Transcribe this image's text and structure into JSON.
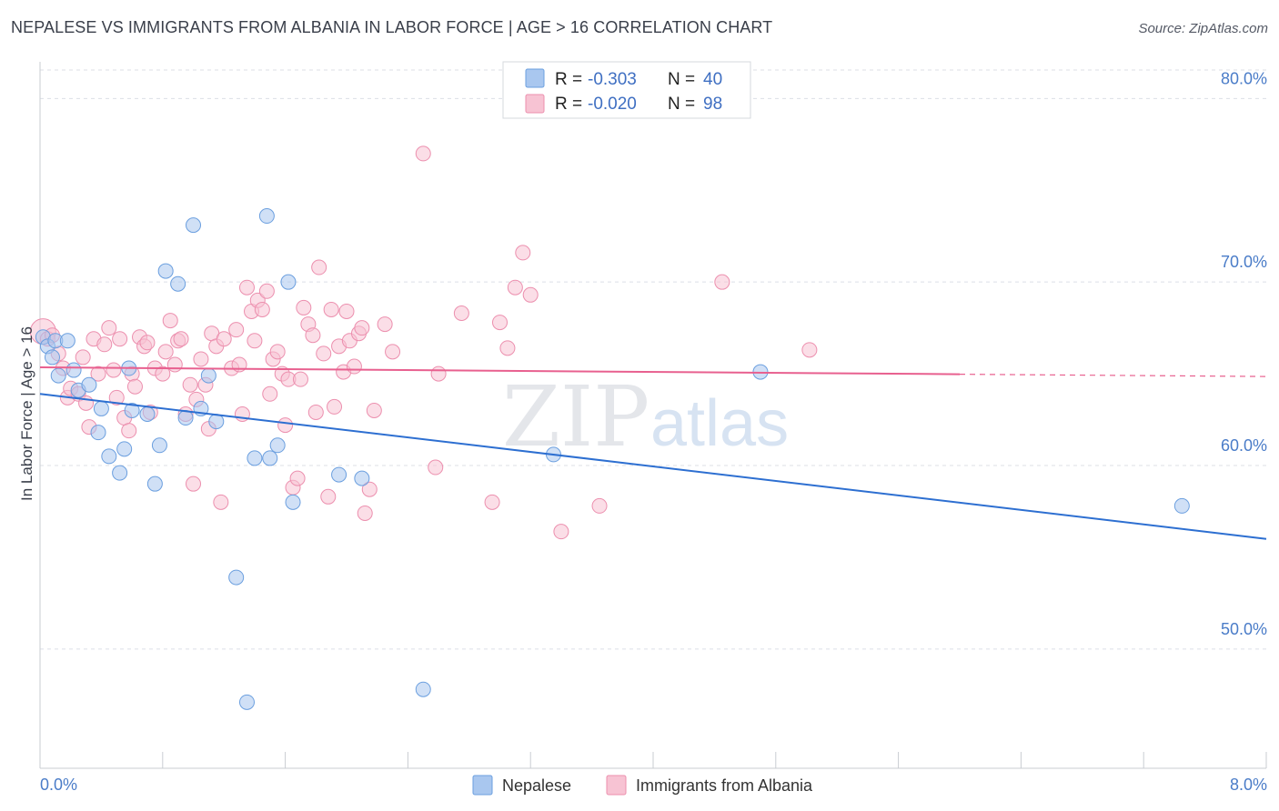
{
  "title": "NEPALESE VS IMMIGRANTS FROM ALBANIA IN LABOR FORCE | AGE > 16 CORRELATION CHART",
  "source": "Source: ZipAtlas.com",
  "watermark": {
    "zip": "ZIP",
    "atlas": "atlas"
  },
  "colors": {
    "nepalese_fill": "#a9c7ef",
    "nepalese_stroke": "#6b9fdf",
    "nepalese_line": "#2d6fd1",
    "albania_fill": "#f7c3d3",
    "albania_stroke": "#ec8fae",
    "albania_line": "#e8608f",
    "tick_text": "#4a7cc8",
    "grid": "#dcdfe6"
  },
  "legend_top": {
    "rows": [
      {
        "r_label": "R = ",
        "r_value": "-0.303",
        "n_label": "N = ",
        "n_value": "40"
      },
      {
        "r_label": "R = ",
        "r_value": "-0.020",
        "n_label": "N = ",
        "n_value": "98"
      }
    ]
  },
  "chart_data": {
    "type": "scatter",
    "title": "NEPALESE VS IMMIGRANTS FROM ALBANIA IN LABOR FORCE | AGE > 16 CORRELATION CHART",
    "xlabel": "",
    "ylabel": "In Labor Force | Age > 16",
    "xlim": [
      0,
      8
    ],
    "ylim": [
      43.5,
      82
    ],
    "x_ticks": [
      "0.0%",
      "8.0%"
    ],
    "y_ticks": [
      {
        "value": 50,
        "label": "50.0%"
      },
      {
        "value": 60,
        "label": "60.0%"
      },
      {
        "value": 70,
        "label": "70.0%"
      },
      {
        "value": 80,
        "label": "80.0%"
      }
    ],
    "grid": true,
    "legend_position": "bottom-center",
    "series": [
      {
        "name": "Nepalese",
        "r": -0.303,
        "n": 40,
        "trend": {
          "x": [
            0.0,
            8.0
          ],
          "y": [
            63.9,
            56.0
          ],
          "dashed_from": null
        },
        "points": [
          [
            0.02,
            67.0
          ],
          [
            0.05,
            66.5
          ],
          [
            0.08,
            65.9
          ],
          [
            0.1,
            66.8
          ],
          [
            0.12,
            64.9
          ],
          [
            0.18,
            66.8
          ],
          [
            0.22,
            65.2
          ],
          [
            0.25,
            64.1
          ],
          [
            0.32,
            64.4
          ],
          [
            0.4,
            63.1
          ],
          [
            0.38,
            61.8
          ],
          [
            0.45,
            60.5
          ],
          [
            0.55,
            60.9
          ],
          [
            0.58,
            65.3
          ],
          [
            0.6,
            63.0
          ],
          [
            0.52,
            59.6
          ],
          [
            0.7,
            62.8
          ],
          [
            0.75,
            59.0
          ],
          [
            0.78,
            61.1
          ],
          [
            0.82,
            70.6
          ],
          [
            0.9,
            69.9
          ],
          [
            0.95,
            62.6
          ],
          [
            1.0,
            73.1
          ],
          [
            1.05,
            63.1
          ],
          [
            1.1,
            64.9
          ],
          [
            1.15,
            62.4
          ],
          [
            1.28,
            53.9
          ],
          [
            1.35,
            47.1
          ],
          [
            1.4,
            60.4
          ],
          [
            1.48,
            73.6
          ],
          [
            1.5,
            60.4
          ],
          [
            1.55,
            61.1
          ],
          [
            1.65,
            58.0
          ],
          [
            1.62,
            70.0
          ],
          [
            1.95,
            59.5
          ],
          [
            2.1,
            59.3
          ],
          [
            2.5,
            47.8
          ],
          [
            3.35,
            60.6
          ],
          [
            4.7,
            65.1
          ],
          [
            7.45,
            57.8
          ]
        ]
      },
      {
        "name": "Immigrants from Albania",
        "r": -0.02,
        "n": 98,
        "trend": {
          "x": [
            0.0,
            8.0
          ],
          "y": [
            65.35,
            64.85
          ],
          "dashed_from": 6.0
        },
        "points": [
          [
            0.02,
            67.3
          ],
          [
            0.05,
            66.9
          ],
          [
            0.08,
            67.1
          ],
          [
            0.12,
            66.1
          ],
          [
            0.15,
            65.3
          ],
          [
            0.18,
            63.7
          ],
          [
            0.2,
            64.2
          ],
          [
            0.25,
            63.9
          ],
          [
            0.28,
            65.9
          ],
          [
            0.3,
            63.4
          ],
          [
            0.32,
            62.1
          ],
          [
            0.35,
            66.9
          ],
          [
            0.38,
            65.0
          ],
          [
            0.42,
            66.6
          ],
          [
            0.45,
            67.5
          ],
          [
            0.48,
            65.2
          ],
          [
            0.5,
            63.7
          ],
          [
            0.52,
            66.9
          ],
          [
            0.55,
            62.6
          ],
          [
            0.58,
            61.9
          ],
          [
            0.6,
            65.0
          ],
          [
            0.62,
            64.3
          ],
          [
            0.65,
            67.0
          ],
          [
            0.68,
            66.5
          ],
          [
            0.7,
            66.7
          ],
          [
            0.72,
            62.9
          ],
          [
            0.75,
            65.3
          ],
          [
            0.8,
            65.0
          ],
          [
            0.82,
            66.2
          ],
          [
            0.85,
            67.9
          ],
          [
            0.88,
            65.5
          ],
          [
            0.9,
            66.8
          ],
          [
            0.92,
            66.9
          ],
          [
            0.95,
            62.8
          ],
          [
            0.98,
            64.4
          ],
          [
            1.0,
            59.0
          ],
          [
            1.02,
            63.6
          ],
          [
            1.05,
            65.8
          ],
          [
            1.08,
            64.4
          ],
          [
            1.1,
            62.0
          ],
          [
            1.12,
            67.2
          ],
          [
            1.15,
            66.5
          ],
          [
            1.18,
            58.0
          ],
          [
            1.2,
            66.9
          ],
          [
            1.25,
            65.3
          ],
          [
            1.28,
            67.4
          ],
          [
            1.3,
            65.5
          ],
          [
            1.32,
            62.8
          ],
          [
            1.35,
            69.7
          ],
          [
            1.38,
            68.4
          ],
          [
            1.4,
            66.8
          ],
          [
            1.42,
            69.0
          ],
          [
            1.45,
            68.5
          ],
          [
            1.48,
            69.5
          ],
          [
            1.5,
            63.9
          ],
          [
            1.52,
            65.8
          ],
          [
            1.55,
            66.2
          ],
          [
            1.58,
            65.0
          ],
          [
            1.6,
            62.2
          ],
          [
            1.62,
            64.7
          ],
          [
            1.65,
            58.8
          ],
          [
            1.68,
            59.3
          ],
          [
            1.7,
            64.7
          ],
          [
            1.72,
            68.6
          ],
          [
            1.75,
            67.7
          ],
          [
            1.78,
            67.1
          ],
          [
            1.8,
            62.9
          ],
          [
            1.82,
            70.8
          ],
          [
            1.85,
            66.1
          ],
          [
            1.88,
            58.3
          ],
          [
            1.9,
            68.5
          ],
          [
            1.92,
            63.2
          ],
          [
            1.95,
            66.5
          ],
          [
            1.98,
            65.1
          ],
          [
            2.0,
            68.4
          ],
          [
            2.02,
            66.8
          ],
          [
            2.05,
            65.4
          ],
          [
            2.08,
            67.2
          ],
          [
            2.1,
            67.5
          ],
          [
            2.12,
            57.4
          ],
          [
            2.15,
            58.7
          ],
          [
            2.18,
            63.0
          ],
          [
            2.25,
            67.7
          ],
          [
            2.3,
            66.2
          ],
          [
            2.5,
            77.0
          ],
          [
            2.58,
            59.9
          ],
          [
            2.6,
            65.0
          ],
          [
            2.75,
            68.3
          ],
          [
            2.95,
            58.0
          ],
          [
            3.0,
            67.8
          ],
          [
            3.05,
            66.4
          ],
          [
            3.1,
            69.7
          ],
          [
            3.15,
            71.6
          ],
          [
            3.2,
            69.3
          ],
          [
            3.4,
            56.4
          ],
          [
            3.65,
            57.8
          ],
          [
            4.45,
            70.0
          ],
          [
            5.02,
            66.3
          ]
        ]
      }
    ]
  }
}
